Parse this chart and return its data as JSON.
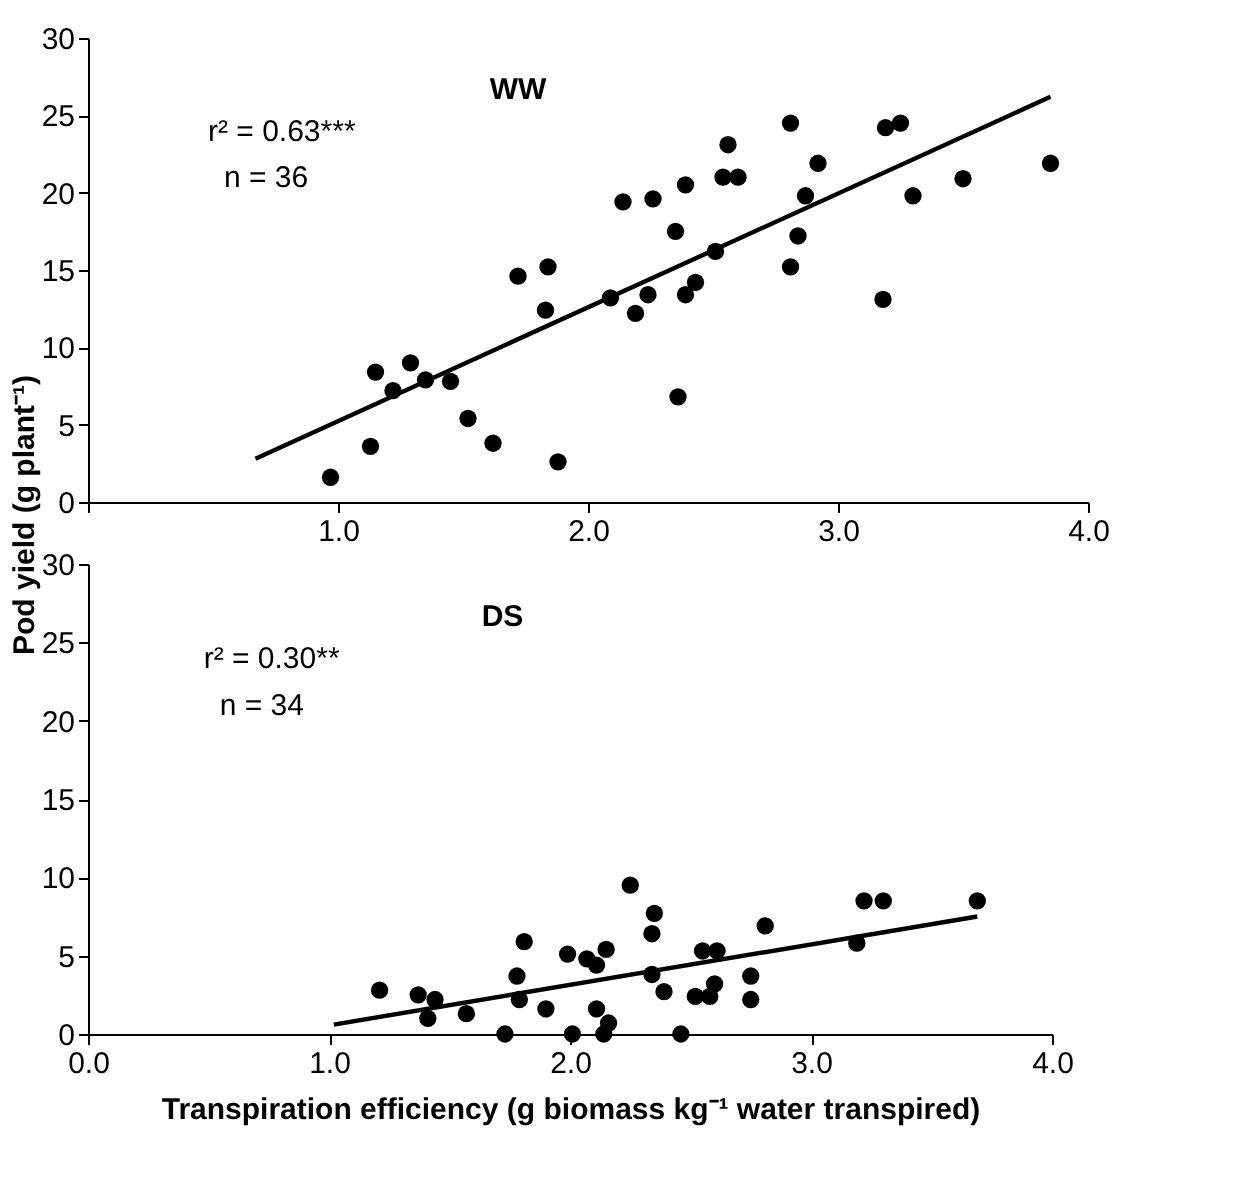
{
  "chart_data": [
    {
      "type": "scatter",
      "ylabel": "Pod yield (g plant⁻¹)",
      "annotations": [
        "WW",
        "r² = 0.63***",
        "n = 36"
      ],
      "xlim": [
        0,
        4
      ],
      "ylim": [
        0,
        30
      ],
      "xticks": [
        {
          "value": 0,
          "label": null
        },
        {
          "value": 1,
          "label": "1.0"
        },
        {
          "value": 2,
          "label": "2.0"
        },
        {
          "value": 3,
          "label": "3.0"
        },
        {
          "value": 4,
          "label": "4.0"
        }
      ],
      "yticks": [
        0,
        5,
        10,
        15,
        20,
        25,
        30
      ],
      "grid": false,
      "series": [
        {
          "color": "#000000",
          "marker": "circle",
          "x": [
            0.97,
            1.13,
            1.15,
            1.22,
            1.29,
            1.35,
            1.45,
            1.52,
            1.62,
            1.72,
            1.83,
            1.84,
            1.88,
            2.09,
            2.14,
            2.19,
            2.24,
            2.26,
            2.35,
            2.36,
            2.39,
            2.39,
            2.43,
            2.51,
            2.54,
            2.56,
            2.6,
            2.81,
            2.81,
            2.84,
            2.87,
            2.92,
            3.18,
            3.19,
            3.25,
            3.3,
            3.5,
            3.85
          ],
          "values": [
            1.6,
            3.6,
            8.4,
            7.2,
            9.0,
            7.9,
            7.8,
            5.4,
            3.8,
            14.6,
            12.4,
            15.2,
            2.6,
            13.2,
            19.4,
            12.2,
            13.4,
            19.6,
            17.5,
            6.8,
            13.4,
            20.5,
            14.2,
            16.2,
            21.0,
            23.1,
            21.0,
            15.2,
            24.5,
            17.2,
            19.8,
            21.9,
            13.1,
            24.2,
            24.5,
            19.8,
            20.9,
            21.9
          ]
        },
        {
          "type": "line",
          "color": "#000000",
          "line_style": "solid",
          "x": [
            0.67,
            3.85
          ],
          "values": [
            2.8,
            26.2
          ]
        }
      ]
    },
    {
      "type": "scatter",
      "xlabel": "Transpiration efficiency (g biomass kg⁻¹ water transpired)",
      "annotations": [
        "DS",
        "r² = 0.30**",
        "n = 34"
      ],
      "xlim": [
        0,
        4
      ],
      "ylim": [
        0,
        30
      ],
      "xticks": [
        {
          "value": 0,
          "label": "0.0"
        },
        {
          "value": 1,
          "label": "1.0"
        },
        {
          "value": 2,
          "label": "2.0"
        },
        {
          "value": 3,
          "label": "3.0"
        },
        {
          "value": 4,
          "label": "4.0"
        }
      ],
      "yticks": [
        0,
        5,
        10,
        15,
        20,
        25,
        30
      ],
      "grid": false,
      "series": [
        {
          "color": "#000000",
          "marker": "circle",
          "x": [
            1.21,
            1.37,
            1.41,
            1.44,
            1.57,
            1.73,
            1.78,
            1.79,
            1.81,
            1.9,
            1.99,
            2.01,
            2.07,
            2.11,
            2.11,
            2.15,
            2.16,
            2.14,
            2.25,
            2.34,
            2.35,
            2.34,
            2.39,
            2.46,
            2.52,
            2.55,
            2.58,
            2.6,
            2.61,
            2.75,
            2.75,
            2.81,
            3.19,
            3.22,
            3.3,
            3.69
          ],
          "values": [
            2.8,
            2.5,
            1.0,
            2.2,
            1.3,
            0.0,
            3.7,
            2.2,
            5.9,
            1.6,
            5.1,
            0.0,
            4.8,
            4.4,
            1.6,
            5.4,
            0.7,
            0.0,
            9.5,
            6.4,
            7.7,
            3.8,
            2.7,
            0.0,
            2.4,
            5.3,
            2.4,
            3.2,
            5.3,
            3.7,
            2.2,
            6.9,
            5.8,
            8.5,
            8.5,
            8.5
          ]
        },
        {
          "type": "line",
          "color": "#000000",
          "line_style": "solid",
          "x": [
            1.02,
            3.69
          ],
          "values": [
            0.6,
            7.5
          ]
        }
      ]
    }
  ]
}
